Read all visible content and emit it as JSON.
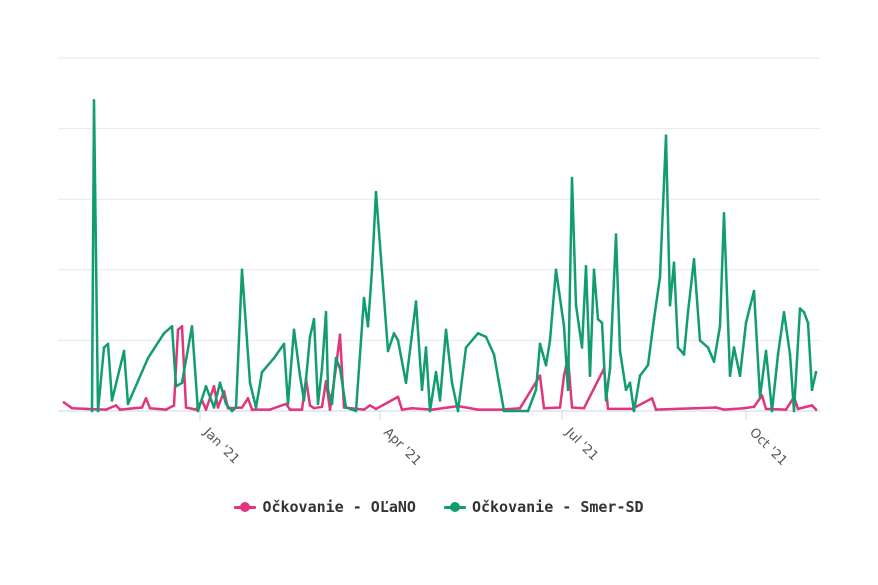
{
  "chart_data": {
    "type": "line",
    "title": "",
    "xlabel": "",
    "ylabel": "",
    "x_range": [
      "2020-10-22",
      "2021-11-07"
    ],
    "ylim": [
      0,
      5
    ],
    "y_gridlines": [
      0,
      1,
      2,
      3,
      4,
      5
    ],
    "y_tick_labels_visible": false,
    "grid": true,
    "legend_position": "bottom-center",
    "x_ticks": [
      {
        "date": "2021-01-01",
        "label": "Jan '21"
      },
      {
        "date": "2021-04-01",
        "label": "Apr '21"
      },
      {
        "date": "2021-07-01",
        "label": "Jul '21"
      },
      {
        "date": "2021-10-01",
        "label": "Oct '21"
      }
    ],
    "series": [
      {
        "name": "Očkovanie - OĽaNO",
        "color": "#e0357f",
        "points": [
          [
            "2020-10-25",
            0.12
          ],
          [
            "2020-10-29",
            0.04
          ],
          [
            "2020-11-05",
            0.03
          ],
          [
            "2020-11-15",
            0.02
          ],
          [
            "2020-11-20",
            0.08
          ],
          [
            "2020-11-22",
            0.02
          ],
          [
            "2020-12-03",
            0.05
          ],
          [
            "2020-12-05",
            0.18
          ],
          [
            "2020-12-07",
            0.04
          ],
          [
            "2020-12-15",
            0.02
          ],
          [
            "2020-12-19",
            0.08
          ],
          [
            "2020-12-21",
            1.15
          ],
          [
            "2020-12-23",
            1.2
          ],
          [
            "2020-12-25",
            0.05
          ],
          [
            "2020-12-30",
            0.02
          ],
          [
            "2021-01-02",
            0.15
          ],
          [
            "2021-01-04",
            0.02
          ],
          [
            "2021-01-08",
            0.35
          ],
          [
            "2021-01-10",
            0.05
          ],
          [
            "2021-01-13",
            0.28
          ],
          [
            "2021-01-15",
            0.04
          ],
          [
            "2021-01-22",
            0.05
          ],
          [
            "2021-01-25",
            0.18
          ],
          [
            "2021-01-27",
            0.02
          ],
          [
            "2021-02-05",
            0.02
          ],
          [
            "2021-02-13",
            0.1
          ],
          [
            "2021-02-15",
            0.02
          ],
          [
            "2021-02-21",
            0.02
          ],
          [
            "2021-02-23",
            0.45
          ],
          [
            "2021-02-25",
            0.08
          ],
          [
            "2021-02-27",
            0.04
          ],
          [
            "2021-03-03",
            0.06
          ],
          [
            "2021-03-05",
            0.42
          ],
          [
            "2021-03-07",
            0.02
          ],
          [
            "2021-03-10",
            0.62
          ],
          [
            "2021-03-12",
            1.08
          ],
          [
            "2021-03-14",
            0.05
          ],
          [
            "2021-03-24",
            0.02
          ],
          [
            "2021-03-27",
            0.08
          ],
          [
            "2021-03-30",
            0.03
          ],
          [
            "2021-04-10",
            0.2
          ],
          [
            "2021-04-12",
            0.02
          ],
          [
            "2021-04-17",
            0.04
          ],
          [
            "2021-04-27",
            0.02
          ],
          [
            "2021-05-10",
            0.07
          ],
          [
            "2021-05-20",
            0.02
          ],
          [
            "2021-06-01",
            0.02
          ],
          [
            "2021-06-10",
            0.04
          ],
          [
            "2021-06-20",
            0.5
          ],
          [
            "2021-06-22",
            0.04
          ],
          [
            "2021-06-30",
            0.05
          ],
          [
            "2021-07-02",
            0.5
          ],
          [
            "2021-07-04",
            0.76
          ],
          [
            "2021-07-06",
            0.05
          ],
          [
            "2021-07-12",
            0.04
          ],
          [
            "2021-07-22",
            0.6
          ],
          [
            "2021-07-24",
            0.03
          ],
          [
            "2021-08-05",
            0.03
          ],
          [
            "2021-08-15",
            0.18
          ],
          [
            "2021-08-17",
            0.02
          ],
          [
            "2021-08-27",
            0.03
          ],
          [
            "2021-09-06",
            0.04
          ],
          [
            "2021-09-16",
            0.05
          ],
          [
            "2021-09-20",
            0.02
          ],
          [
            "2021-09-30",
            0.04
          ],
          [
            "2021-10-05",
            0.06
          ],
          [
            "2021-10-09",
            0.22
          ],
          [
            "2021-10-11",
            0.03
          ],
          [
            "2021-10-21",
            0.02
          ],
          [
            "2021-10-25",
            0.2
          ],
          [
            "2021-10-27",
            0.03
          ],
          [
            "2021-11-03",
            0.08
          ],
          [
            "2021-11-05",
            0.02
          ]
        ]
      },
      {
        "name": "Očkovanie - Smer-SD",
        "color": "#129d6e",
        "points": [
          [
            "2020-11-08",
            0.0
          ],
          [
            "2020-11-09",
            4.4
          ],
          [
            "2020-11-11",
            0.0
          ],
          [
            "2020-11-14",
            0.9
          ],
          [
            "2020-11-16",
            0.95
          ],
          [
            "2020-11-18",
            0.15
          ],
          [
            "2020-11-24",
            0.85
          ],
          [
            "2020-11-26",
            0.1
          ],
          [
            "2020-12-06",
            0.75
          ],
          [
            "2020-12-14",
            1.1
          ],
          [
            "2020-12-18",
            1.2
          ],
          [
            "2020-12-20",
            0.35
          ],
          [
            "2020-12-23",
            0.4
          ],
          [
            "2020-12-28",
            1.2
          ],
          [
            "2020-12-31",
            0.0
          ],
          [
            "2021-01-04",
            0.35
          ],
          [
            "2021-01-08",
            0.05
          ],
          [
            "2021-01-11",
            0.4
          ],
          [
            "2021-01-14",
            0.1
          ],
          [
            "2021-01-17",
            0.0
          ],
          [
            "2021-01-19",
            0.05
          ],
          [
            "2021-01-22",
            2.0
          ],
          [
            "2021-01-26",
            0.4
          ],
          [
            "2021-01-29",
            0.05
          ],
          [
            "2021-02-01",
            0.55
          ],
          [
            "2021-02-07",
            0.75
          ],
          [
            "2021-02-12",
            0.95
          ],
          [
            "2021-02-14",
            0.1
          ],
          [
            "2021-02-17",
            1.15
          ],
          [
            "2021-02-20",
            0.5
          ],
          [
            "2021-02-22",
            0.15
          ],
          [
            "2021-02-25",
            1.05
          ],
          [
            "2021-02-27",
            1.3
          ],
          [
            "2021-03-01",
            0.1
          ],
          [
            "2021-03-03",
            0.6
          ],
          [
            "2021-03-05",
            1.4
          ],
          [
            "2021-03-06",
            0.3
          ],
          [
            "2021-03-08",
            0.1
          ],
          [
            "2021-03-10",
            0.75
          ],
          [
            "2021-03-12",
            0.6
          ],
          [
            "2021-03-15",
            0.05
          ],
          [
            "2021-03-20",
            0.0
          ],
          [
            "2021-03-24",
            1.6
          ],
          [
            "2021-03-26",
            1.2
          ],
          [
            "2021-03-28",
            2.0
          ],
          [
            "2021-03-30",
            3.1
          ],
          [
            "2021-04-05",
            0.85
          ],
          [
            "2021-04-08",
            1.1
          ],
          [
            "2021-04-10",
            1.0
          ],
          [
            "2021-04-14",
            0.4
          ],
          [
            "2021-04-19",
            1.55
          ],
          [
            "2021-04-22",
            0.3
          ],
          [
            "2021-04-24",
            0.9
          ],
          [
            "2021-04-26",
            0.0
          ],
          [
            "2021-04-29",
            0.55
          ],
          [
            "2021-05-01",
            0.15
          ],
          [
            "2021-05-04",
            1.15
          ],
          [
            "2021-05-07",
            0.4
          ],
          [
            "2021-05-10",
            0.0
          ],
          [
            "2021-05-14",
            0.9
          ],
          [
            "2021-05-20",
            1.1
          ],
          [
            "2021-05-24",
            1.05
          ],
          [
            "2021-05-28",
            0.8
          ],
          [
            "2021-06-02",
            0.0
          ],
          [
            "2021-06-06",
            0.0
          ],
          [
            "2021-06-14",
            0.0
          ],
          [
            "2021-06-18",
            0.3
          ],
          [
            "2021-06-20",
            0.95
          ],
          [
            "2021-06-23",
            0.65
          ],
          [
            "2021-06-25",
            1.0
          ],
          [
            "2021-06-28",
            2.0
          ],
          [
            "2021-07-02",
            1.2
          ],
          [
            "2021-07-04",
            0.3
          ],
          [
            "2021-07-06",
            3.3
          ],
          [
            "2021-07-08",
            1.5
          ],
          [
            "2021-07-11",
            0.9
          ],
          [
            "2021-07-13",
            2.05
          ],
          [
            "2021-07-15",
            0.5
          ],
          [
            "2021-07-17",
            2.0
          ],
          [
            "2021-07-19",
            1.3
          ],
          [
            "2021-07-21",
            1.25
          ],
          [
            "2021-07-23",
            0.15
          ],
          [
            "2021-07-25",
            0.6
          ],
          [
            "2021-07-28",
            2.5
          ],
          [
            "2021-07-30",
            0.85
          ],
          [
            "2021-08-02",
            0.3
          ],
          [
            "2021-08-04",
            0.4
          ],
          [
            "2021-08-06",
            0.0
          ],
          [
            "2021-08-09",
            0.5
          ],
          [
            "2021-08-13",
            0.65
          ],
          [
            "2021-08-16",
            1.3
          ],
          [
            "2021-08-19",
            1.9
          ],
          [
            "2021-08-22",
            3.9
          ],
          [
            "2021-08-24",
            1.5
          ],
          [
            "2021-08-26",
            2.1
          ],
          [
            "2021-08-28",
            0.9
          ],
          [
            "2021-08-31",
            0.8
          ],
          [
            "2021-09-02",
            1.4
          ],
          [
            "2021-09-05",
            2.15
          ],
          [
            "2021-09-08",
            1.0
          ],
          [
            "2021-09-12",
            0.9
          ],
          [
            "2021-09-15",
            0.7
          ],
          [
            "2021-09-18",
            1.2
          ],
          [
            "2021-09-20",
            2.8
          ],
          [
            "2021-09-23",
            0.5
          ],
          [
            "2021-09-25",
            0.9
          ],
          [
            "2021-09-28",
            0.5
          ],
          [
            "2021-10-01",
            1.25
          ],
          [
            "2021-10-05",
            1.7
          ],
          [
            "2021-10-08",
            0.2
          ],
          [
            "2021-10-11",
            0.85
          ],
          [
            "2021-10-14",
            0.0
          ],
          [
            "2021-10-17",
            0.8
          ],
          [
            "2021-10-20",
            1.4
          ],
          [
            "2021-10-23",
            0.8
          ],
          [
            "2021-10-25",
            0.0
          ],
          [
            "2021-10-28",
            1.45
          ],
          [
            "2021-10-30",
            1.4
          ],
          [
            "2021-11-01",
            1.25
          ],
          [
            "2021-11-03",
            0.3
          ],
          [
            "2021-11-05",
            0.55
          ]
        ]
      }
    ]
  }
}
